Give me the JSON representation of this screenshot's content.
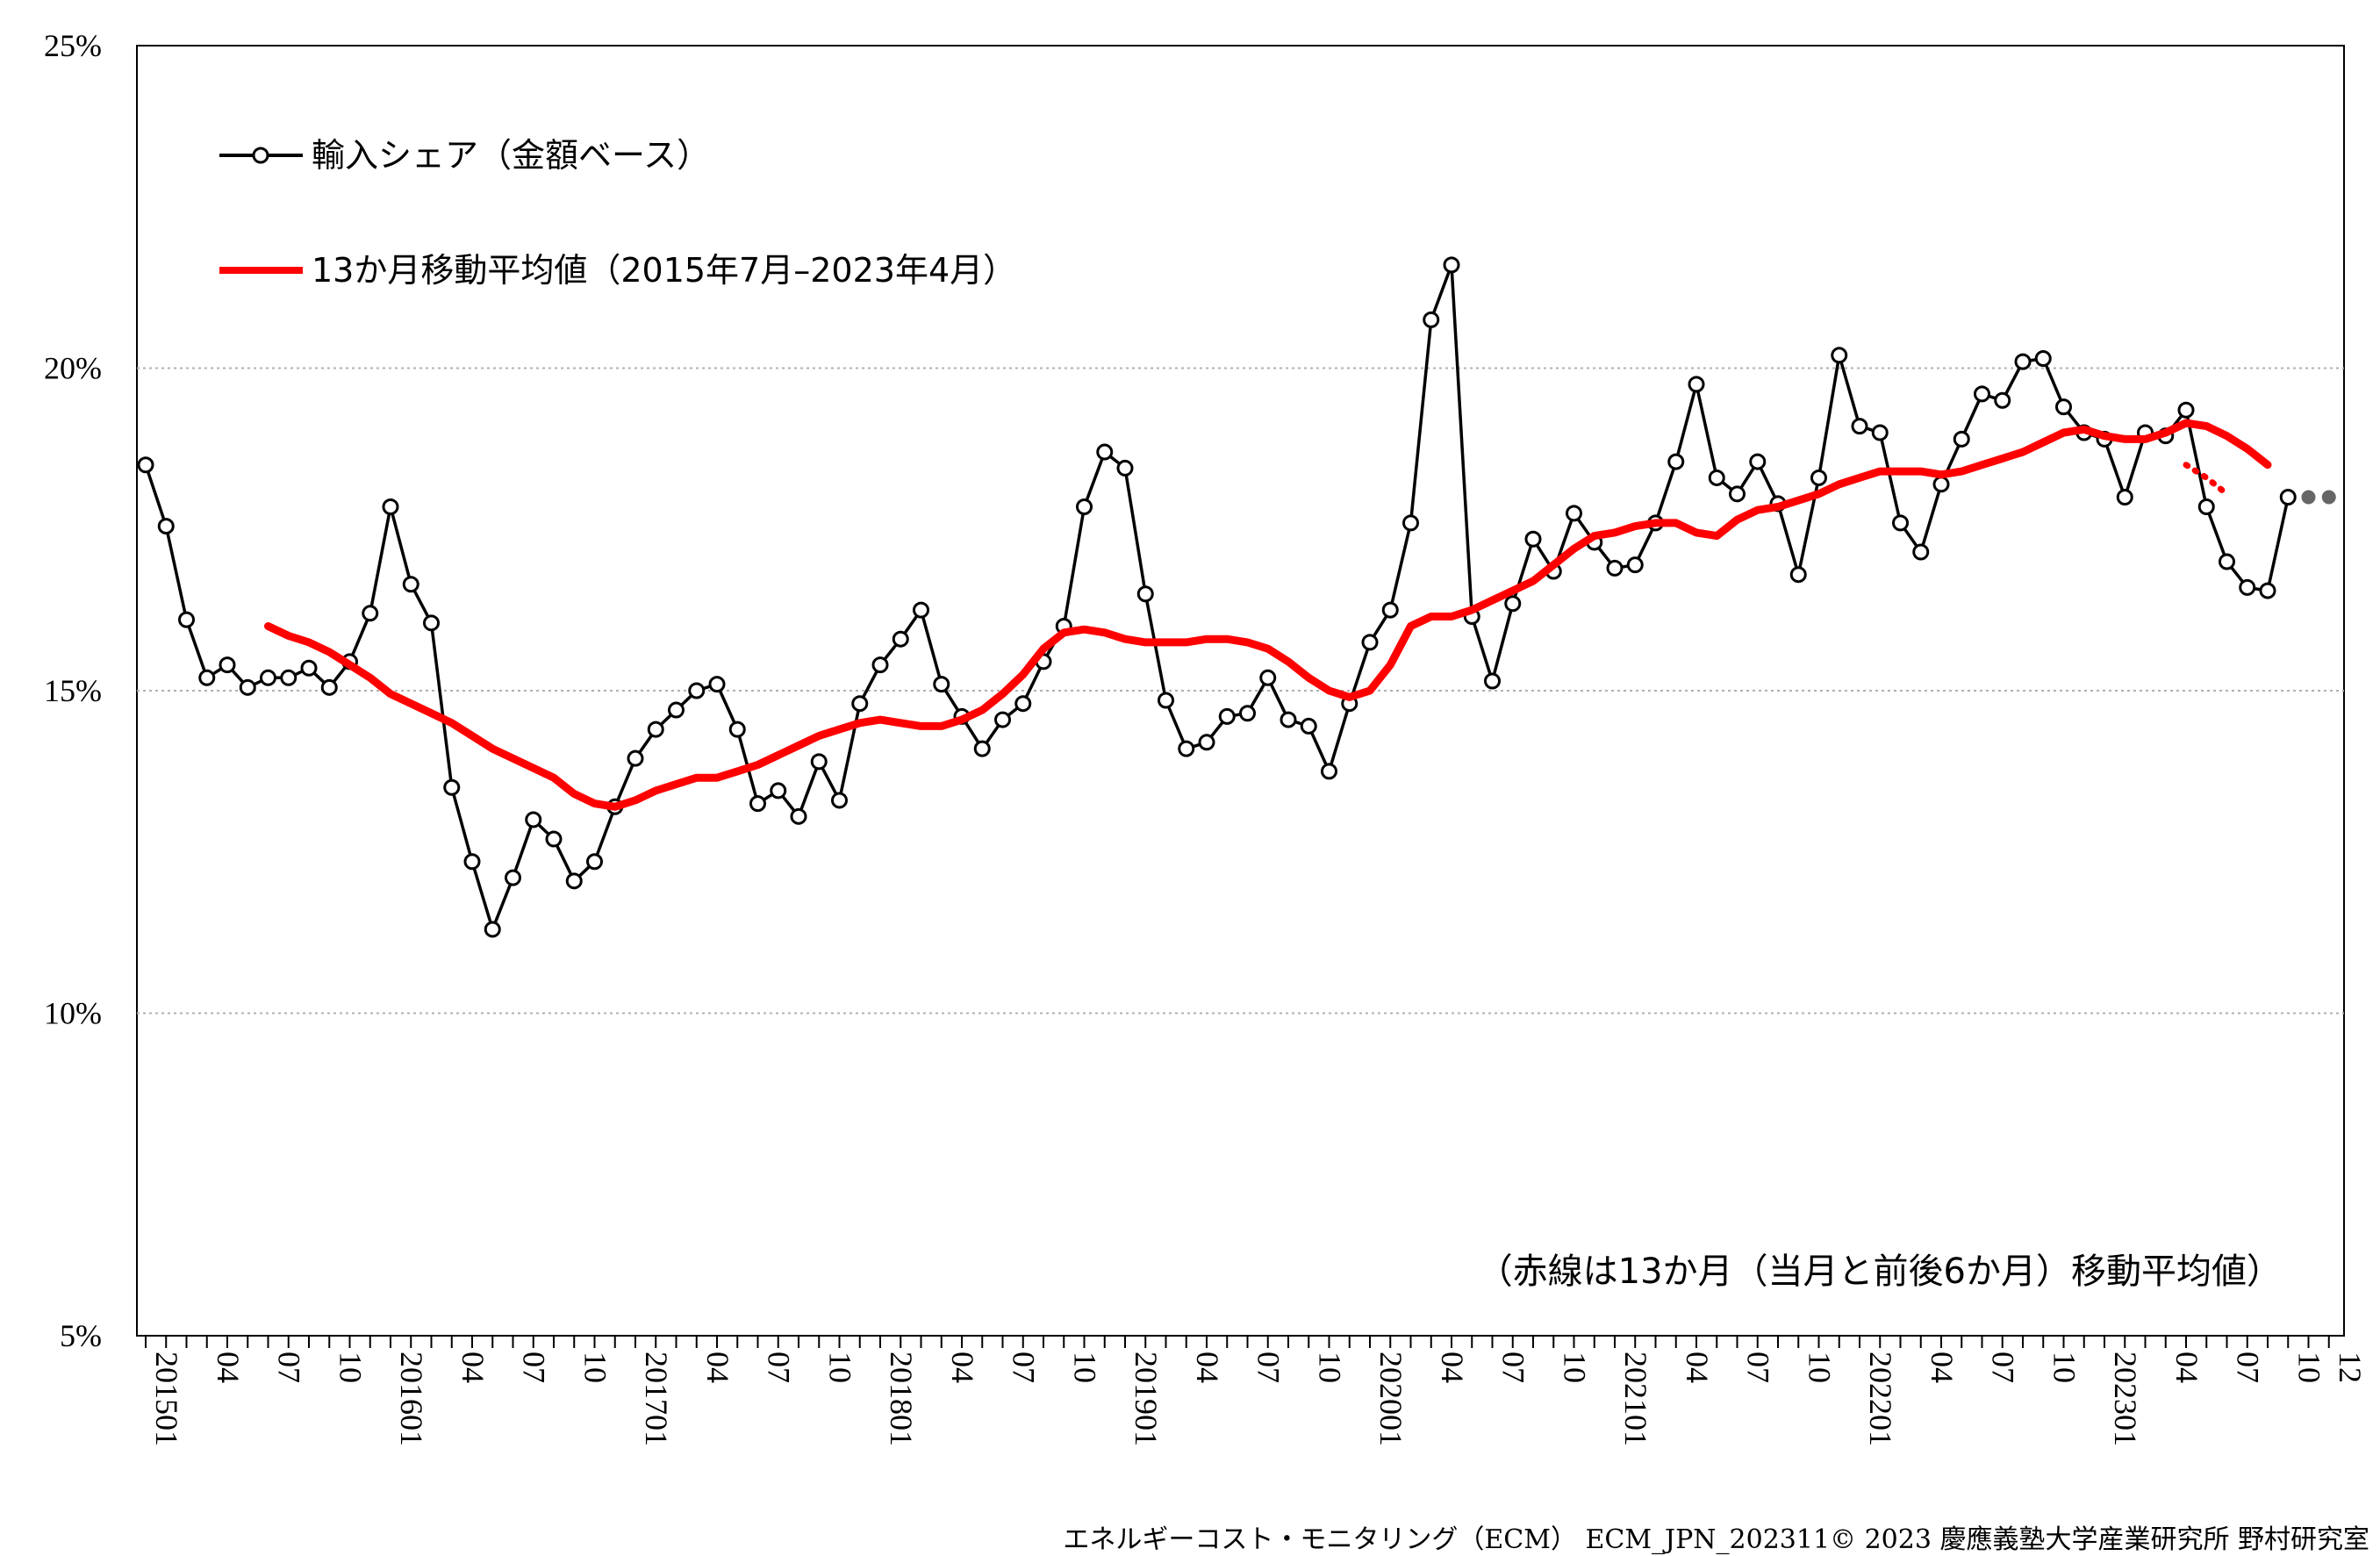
{
  "chart_data": {
    "type": "line",
    "ylim": [
      5,
      25
    ],
    "y_ticks": [
      "25%",
      "20%",
      "15%",
      "10%",
      "5%"
    ],
    "grid": "horizontal dotted",
    "x_labels": [
      "201501",
      "04",
      "07",
      "10",
      "201601",
      "04",
      "07",
      "10",
      "201701",
      "04",
      "07",
      "10",
      "201801",
      "04",
      "07",
      "10",
      "201901",
      "04",
      "07",
      "10",
      "202001",
      "04",
      "07",
      "10",
      "202101",
      "04",
      "07",
      "10",
      "202201",
      "04",
      "07",
      "10",
      "202301",
      "04",
      "07",
      "10",
      "12"
    ],
    "legend": {
      "placement": "top-left",
      "share_label": "輸入シェア（金額ベース）",
      "ma_label": "13か月移動平均値（2015年7月–2023年4月）"
    },
    "annotation": "（赤線は13か月（当月と前後6か月）移動平均値）",
    "footer": "エネルギーコスト・モニタリング（ECM） ECM_JPN_202311© 2023 慶應義塾大学産業研究所 野村研究室",
    "series": [
      {
        "name": "輸入シェア（金額ベース）",
        "color": "#000000",
        "marker": "open-circle",
        "start_index": 0,
        "values": [
          18.5,
          17.55,
          16.1,
          15.2,
          15.4,
          15.05,
          15.2,
          15.2,
          15.35,
          15.05,
          15.45,
          16.2,
          17.85,
          16.65,
          16.05,
          13.5,
          12.35,
          11.3,
          12.1,
          13.0,
          12.7,
          12.05,
          12.35,
          13.2,
          13.95,
          14.4,
          14.7,
          15.0,
          15.1,
          14.4,
          13.25,
          13.45,
          13.05,
          13.9,
          13.3,
          14.8,
          15.4,
          15.8,
          16.25,
          15.1,
          14.6,
          14.1,
          14.55,
          14.8,
          15.45,
          16.0,
          17.85,
          18.7,
          18.45,
          16.5,
          14.85,
          14.1,
          14.2,
          14.6,
          14.65,
          15.2,
          14.55,
          14.45,
          13.75,
          14.8,
          15.75,
          16.25,
          17.6,
          20.75,
          21.6,
          16.15,
          15.15,
          16.35,
          17.35,
          16.85,
          17.75,
          17.3,
          16.9,
          16.95,
          17.6,
          18.55,
          19.75,
          18.3,
          18.05,
          18.55,
          17.9,
          16.8,
          18.3,
          20.2,
          19.1,
          19.0,
          17.6,
          17.15,
          18.2,
          18.9,
          19.6,
          19.5,
          20.1,
          20.15,
          19.4,
          19.0,
          18.9,
          18.0,
          19.0,
          18.95,
          19.35,
          17.85,
          17.0,
          16.6,
          16.55,
          18.0
        ]
      },
      {
        "name": "13か月移動平均値（2015年7月–2023年4月）",
        "color": "#ff0000",
        "start_index": 6,
        "values": [
          16.0,
          15.85,
          15.75,
          15.6,
          15.4,
          15.2,
          14.95,
          14.8,
          14.65,
          14.5,
          14.3,
          14.1,
          13.95,
          13.8,
          13.65,
          13.4,
          13.25,
          13.2,
          13.3,
          13.45,
          13.55,
          13.65,
          13.65,
          13.75,
          13.85,
          14.0,
          14.15,
          14.3,
          14.4,
          14.5,
          14.55,
          14.5,
          14.45,
          14.45,
          14.55,
          14.7,
          14.95,
          15.25,
          15.65,
          15.9,
          15.95,
          15.9,
          15.8,
          15.75,
          15.75,
          15.75,
          15.8,
          15.8,
          15.75,
          15.65,
          15.45,
          15.2,
          15.0,
          14.9,
          15.0,
          15.4,
          16.0,
          16.15,
          16.15,
          16.25,
          16.4,
          16.55,
          16.7,
          16.95,
          17.2,
          17.4,
          17.45,
          17.55,
          17.6,
          17.6,
          17.45,
          17.4,
          17.65,
          17.8,
          17.85,
          17.95,
          18.05,
          18.2,
          18.3,
          18.4,
          18.4,
          18.4,
          18.35,
          18.4,
          18.5,
          18.6,
          18.7,
          18.85,
          19.0,
          19.05,
          18.95,
          18.9,
          18.9,
          19.0,
          19.15,
          19.1,
          18.95,
          18.75,
          18.5
        ]
      },
      {
        "name": "",
        "color": "#ff0000",
        "style": "dotted",
        "start_index": 100,
        "values": [
          18.5,
          18.3,
          18.05
        ]
      },
      {
        "name": "",
        "color": "#666666",
        "marker": "filled-dot",
        "start_index": 106,
        "values": [
          18.0,
          18.0
        ]
      }
    ]
  }
}
